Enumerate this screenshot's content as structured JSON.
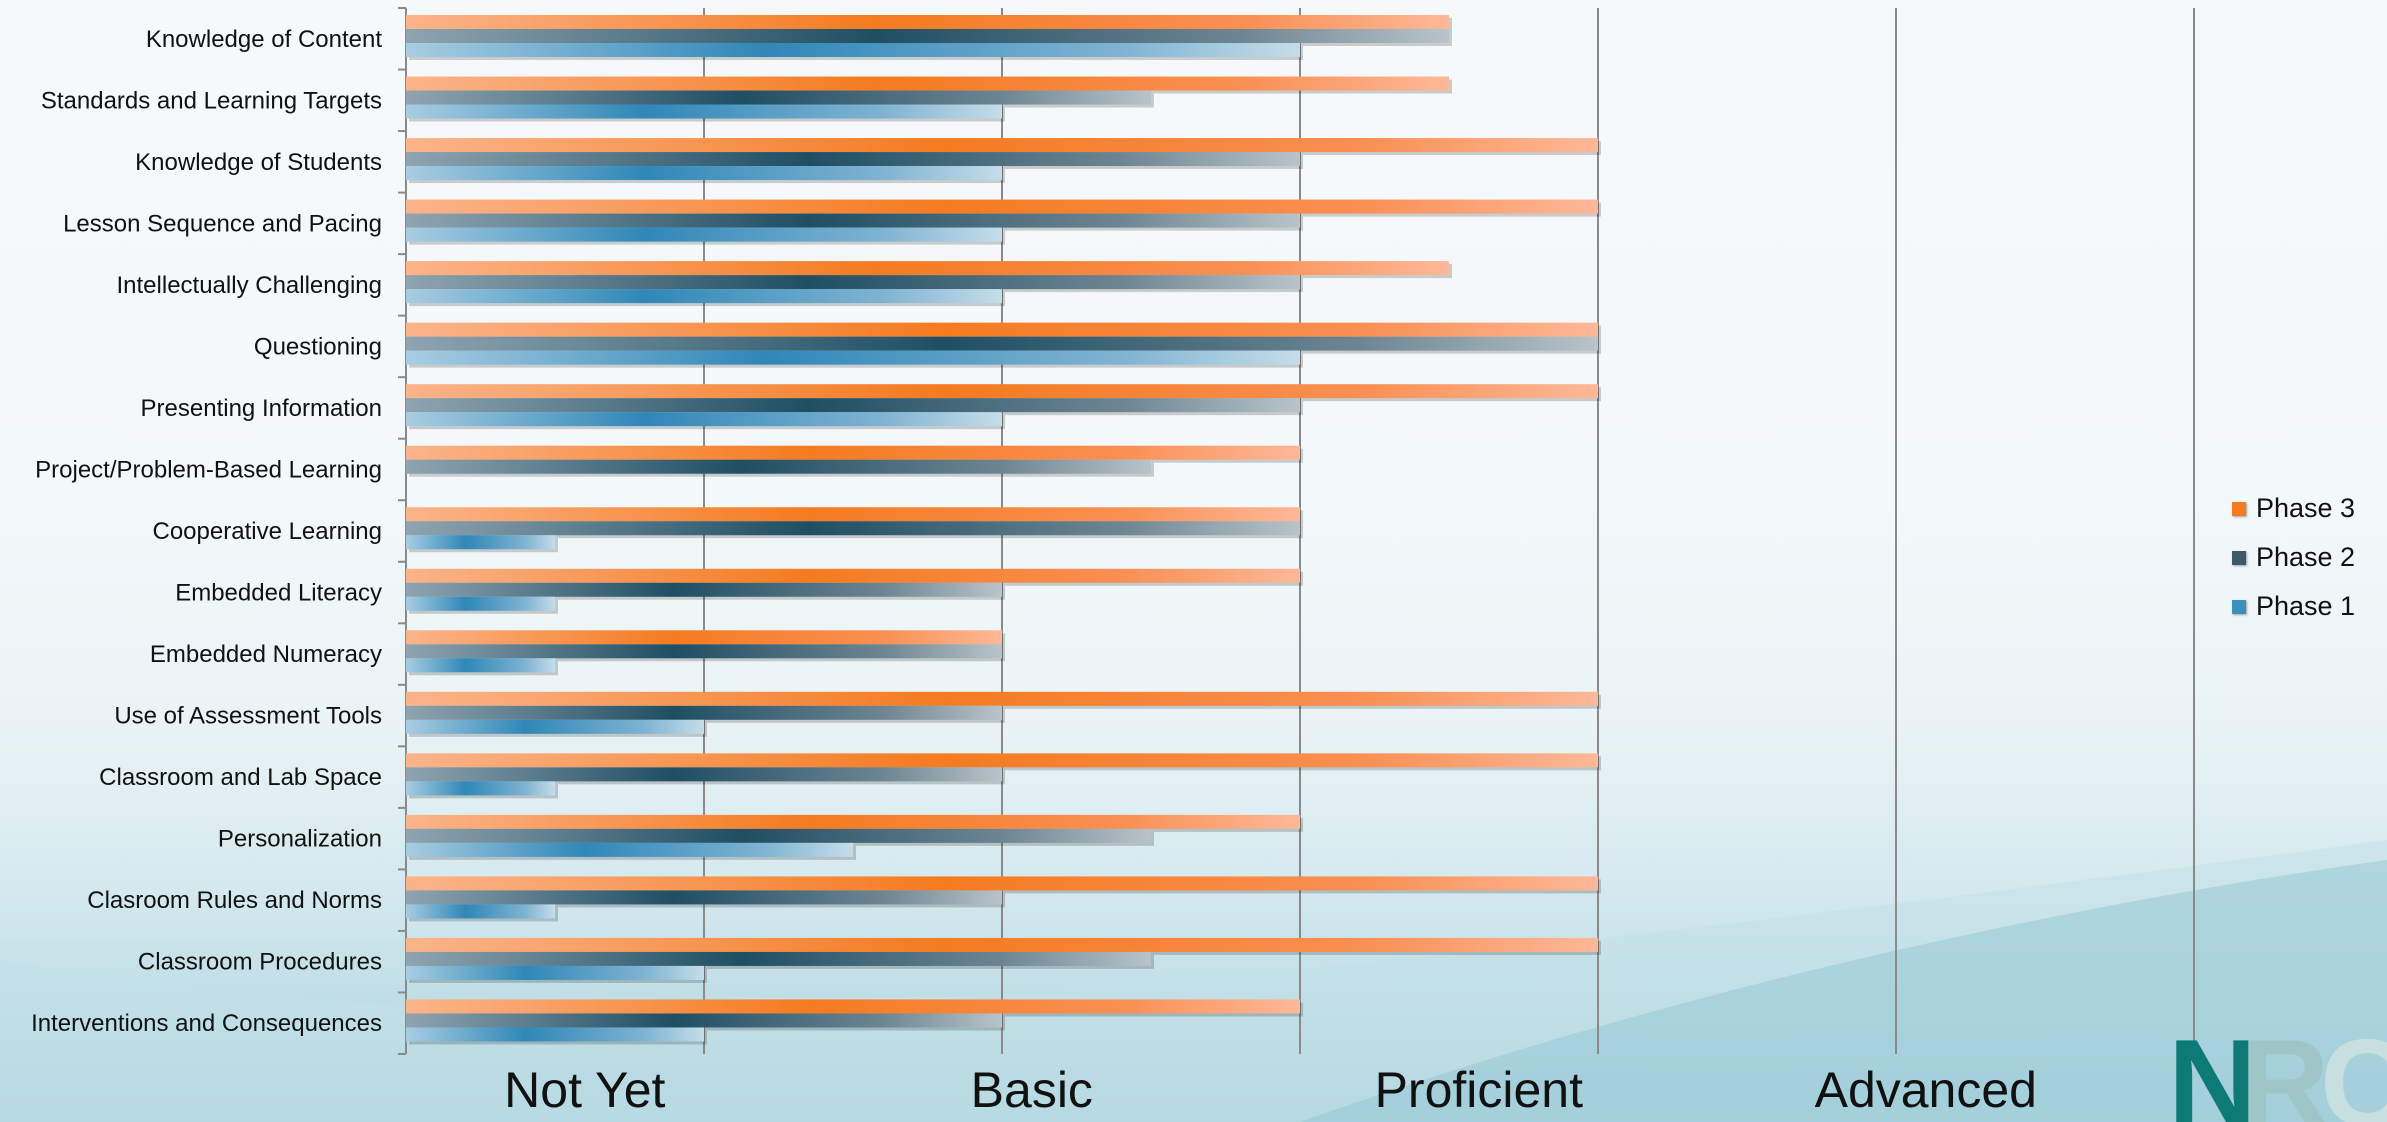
{
  "chart_data": {
    "type": "bar",
    "orientation": "horizontal",
    "categories": [
      "Knowledge of Content",
      "Standards and Learning Targets",
      "Knowledge of Students",
      "Lesson Sequence and Pacing",
      "Intellectually Challenging",
      "Questioning",
      "Presenting Information",
      "Project/Problem-Based Learning",
      "Cooperative Learning",
      "Embedded Literacy",
      "Embedded Numeracy",
      "Use of Assessment Tools",
      "Classroom and Lab Space",
      "Personalization",
      "Clasroom Rules and Norms",
      "Classroom Procedures",
      "Interventions and Consequences"
    ],
    "series": [
      {
        "name": "Phase 3",
        "color": "#f47b20",
        "values": [
          3.5,
          3.5,
          4,
          4,
          3.5,
          4,
          4,
          3,
          3,
          3,
          2,
          4,
          4,
          3,
          4,
          4,
          3
        ]
      },
      {
        "name": "Phase 2",
        "color": "#1f4e63",
        "values": [
          3.5,
          2.5,
          3,
          3,
          3,
          4,
          3,
          2.5,
          3,
          2,
          2,
          2,
          2,
          2.5,
          2,
          2.5,
          2
        ]
      },
      {
        "name": "Phase 1",
        "color": "#2f87b8",
        "values": [
          3,
          2,
          2,
          2,
          2,
          3,
          2,
          0,
          0.5,
          0.5,
          0.5,
          1,
          0.5,
          1.5,
          0.5,
          1,
          1
        ]
      }
    ],
    "xlim": [
      0,
      6
    ],
    "xtick_labels": [
      "Not Yet",
      "Basic",
      "Proficient",
      "Advanced"
    ],
    "grid": true,
    "legend_position": "right"
  },
  "legend": [
    {
      "label": "Phase 3",
      "color": "#f47b20"
    },
    {
      "label": "Phase 2",
      "color": "#3d5866"
    },
    {
      "label": "Phase 1",
      "color": "#3a8fbf"
    }
  ],
  "logo": {
    "text": "NRC"
  }
}
